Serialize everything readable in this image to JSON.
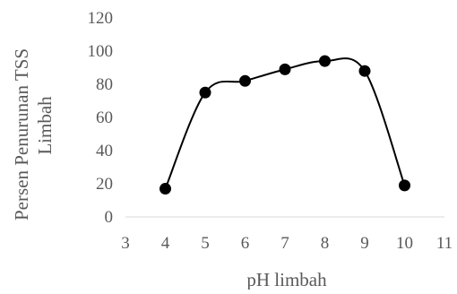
{
  "chart_data": {
    "type": "scatter",
    "style": "smooth-line-with-markers",
    "title": "",
    "xlabel": "pH limbah",
    "ylabel_lines": [
      "Persen Penurunan TSS",
      "Limbah"
    ],
    "xlim": [
      3,
      11
    ],
    "ylim": [
      0,
      120
    ],
    "x_ticks": [
      3,
      4,
      5,
      6,
      7,
      8,
      9,
      10,
      11
    ],
    "y_ticks": [
      0,
      20,
      40,
      60,
      80,
      100,
      120
    ],
    "grid": false,
    "legend": "none",
    "series": [
      {
        "x": [
          4,
          5,
          6,
          7,
          8,
          9,
          10
        ],
        "y": [
          17,
          75,
          82,
          89,
          94,
          88,
          19
        ],
        "color": "#000000"
      }
    ]
  }
}
